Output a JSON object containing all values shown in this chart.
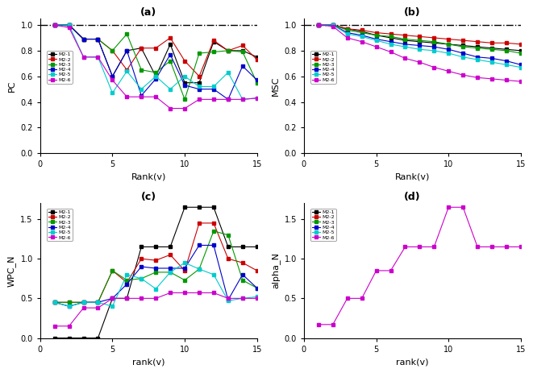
{
  "panel_a_title": "(a)",
  "panel_b_title": "(b)",
  "panel_c_title": "(c)",
  "panel_d_title": "(d)",
  "xlabel_ab": "Rank(v)",
  "xlabel_cd": "rank(v)",
  "ylabel_a": "PC",
  "ylabel_b": "MSC",
  "ylabel_c": "WPC_N",
  "ylabel_d": "alpha_N",
  "xlim": [
    0,
    15
  ],
  "ylim_a": [
    0.0,
    1.05
  ],
  "ylim_b": [
    0.0,
    1.05
  ],
  "ylim_c": [
    0.0,
    1.7
  ],
  "ylim_d": [
    0.0,
    1.7
  ],
  "rank": [
    1,
    2,
    3,
    4,
    5,
    6,
    7,
    8,
    9,
    10,
    11,
    12,
    13,
    14,
    15
  ],
  "colors": [
    "black",
    "#CC0000",
    "#009900",
    "#0000CC",
    "#00CCCC",
    "#CC00CC"
  ],
  "legend_labels": [
    "M2-1",
    "M2-2",
    "M2-3",
    "M2-4",
    "M2-5",
    "M2-6"
  ],
  "PC": {
    "black": [
      1.0,
      1.0,
      0.89,
      0.89,
      0.6,
      0.8,
      0.82,
      0.6,
      0.85,
      0.55,
      0.55,
      0.87,
      0.8,
      0.8,
      0.75
    ],
    "red": [
      1.0,
      1.0,
      0.89,
      0.89,
      0.8,
      0.65,
      0.82,
      0.82,
      0.9,
      0.72,
      0.6,
      0.88,
      0.8,
      0.84,
      0.73
    ],
    "green": [
      1.0,
      1.0,
      0.89,
      0.89,
      0.8,
      0.93,
      0.65,
      0.63,
      0.72,
      0.42,
      0.78,
      0.79,
      0.8,
      0.79,
      0.55
    ],
    "blue": [
      1.0,
      1.0,
      0.89,
      0.89,
      0.6,
      0.8,
      0.45,
      0.58,
      0.77,
      0.53,
      0.5,
      0.5,
      0.42,
      0.68,
      0.57
    ],
    "cyan": [
      1.0,
      1.0,
      0.75,
      0.75,
      0.47,
      0.64,
      0.5,
      0.6,
      0.5,
      0.6,
      0.52,
      0.52,
      0.63,
      0.42,
      0.43
    ],
    "magenta": [
      1.0,
      0.98,
      0.75,
      0.75,
      0.57,
      0.44,
      0.44,
      0.44,
      0.35,
      0.35,
      0.42,
      0.42,
      0.42,
      0.42,
      0.43
    ]
  },
  "MSC": {
    "black": [
      1.0,
      1.0,
      0.97,
      0.95,
      0.92,
      0.9,
      0.88,
      0.87,
      0.86,
      0.85,
      0.84,
      0.83,
      0.82,
      0.81,
      0.8
    ],
    "red": [
      1.0,
      1.0,
      0.97,
      0.96,
      0.94,
      0.93,
      0.92,
      0.91,
      0.9,
      0.89,
      0.88,
      0.87,
      0.86,
      0.86,
      0.85
    ],
    "green": [
      1.0,
      1.0,
      0.96,
      0.94,
      0.92,
      0.91,
      0.89,
      0.88,
      0.87,
      0.85,
      0.83,
      0.82,
      0.81,
      0.8,
      0.78
    ],
    "blue": [
      1.0,
      1.0,
      0.94,
      0.92,
      0.89,
      0.87,
      0.85,
      0.84,
      0.83,
      0.81,
      0.78,
      0.75,
      0.74,
      0.72,
      0.69
    ],
    "cyan": [
      1.0,
      1.0,
      0.93,
      0.91,
      0.88,
      0.85,
      0.83,
      0.81,
      0.8,
      0.78,
      0.75,
      0.73,
      0.71,
      0.69,
      0.67
    ],
    "magenta": [
      1.0,
      0.99,
      0.9,
      0.87,
      0.83,
      0.79,
      0.74,
      0.71,
      0.67,
      0.64,
      0.61,
      0.59,
      0.58,
      0.57,
      0.56
    ]
  },
  "WPC_N": {
    "black": [
      0.0,
      0.0,
      0.0,
      0.0,
      0.5,
      0.5,
      1.15,
      1.15,
      1.15,
      1.65,
      1.65,
      1.65,
      1.15,
      1.15,
      1.15
    ],
    "red": [
      0.45,
      0.45,
      0.45,
      0.45,
      0.85,
      0.7,
      1.0,
      0.98,
      1.05,
      0.85,
      1.45,
      1.45,
      1.0,
      0.95,
      0.85
    ],
    "green": [
      0.45,
      0.45,
      0.45,
      0.45,
      0.85,
      0.73,
      0.75,
      0.83,
      0.83,
      0.73,
      0.87,
      1.35,
      1.3,
      0.73,
      0.63
    ],
    "blue": [
      0.45,
      0.4,
      0.45,
      0.45,
      0.5,
      0.68,
      0.9,
      0.88,
      0.88,
      0.88,
      1.17,
      1.17,
      0.48,
      0.8,
      0.63
    ],
    "cyan": [
      0.45,
      0.4,
      0.45,
      0.45,
      0.4,
      0.8,
      0.75,
      0.62,
      0.83,
      0.95,
      0.87,
      0.8,
      0.47,
      0.5,
      0.52
    ],
    "magenta": [
      0.15,
      0.15,
      0.38,
      0.38,
      0.5,
      0.5,
      0.5,
      0.5,
      0.57,
      0.57,
      0.57,
      0.57,
      0.5,
      0.5,
      0.5
    ]
  },
  "alpha_N": [
    0.17,
    0.17,
    0.5,
    0.5,
    0.85,
    0.85,
    1.15,
    1.15,
    1.15,
    1.65,
    1.65,
    1.15,
    1.15,
    1.15,
    1.15
  ]
}
